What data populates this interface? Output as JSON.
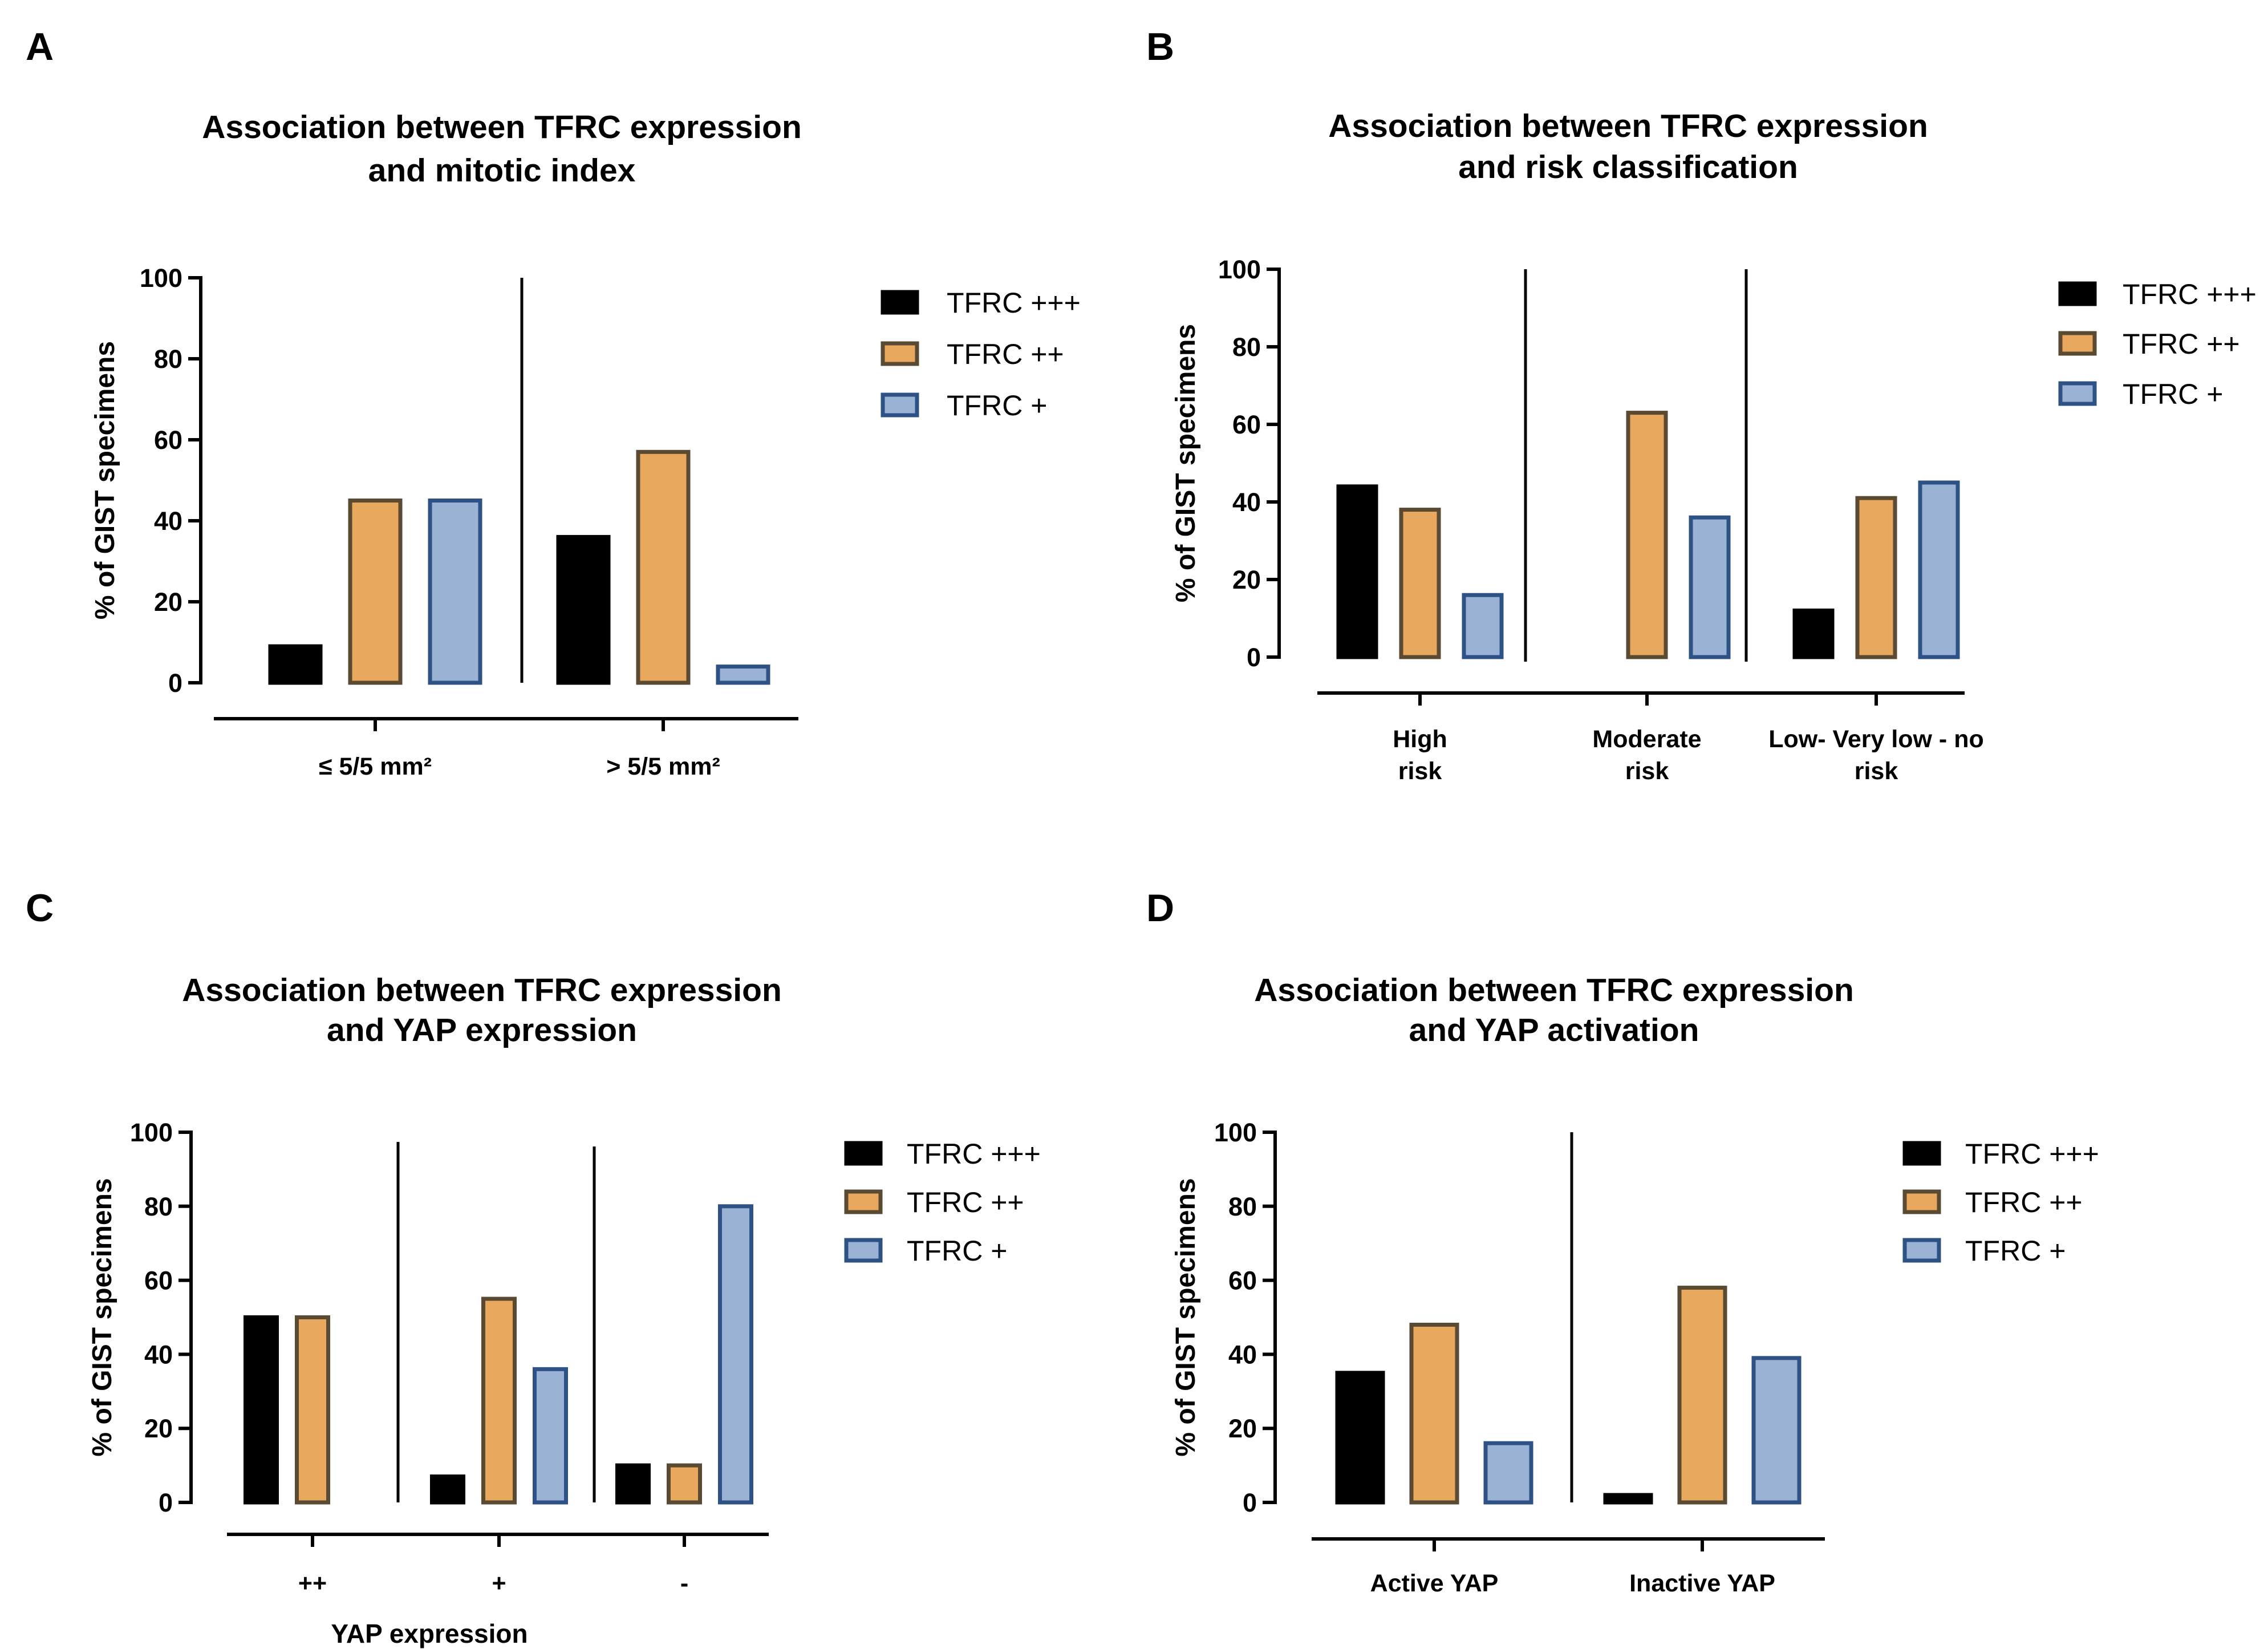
{
  "series_styles": [
    {
      "name": "TFRC +++",
      "fill": "#000000",
      "stroke": "#000000"
    },
    {
      "name": "TFRC ++",
      "fill": "#e8a95f",
      "stroke": "#5a4a32"
    },
    {
      "name": "TFRC +",
      "fill": "#9ab3d5",
      "stroke": "#2e5286"
    }
  ],
  "chart_data": [
    {
      "panel": "A",
      "type": "bar",
      "title": [
        "Association between TFRC expression",
        "and mitotic index"
      ],
      "ylabel": "% of GIST specimens",
      "xlabel": "",
      "ylim": [
        0,
        100
      ],
      "yticks": [
        0,
        20,
        40,
        60,
        80,
        100
      ],
      "categories": [
        [
          "≤ 5/5 mm²"
        ],
        [
          "> 5/5 mm²"
        ]
      ],
      "series": [
        {
          "name": "TFRC +++",
          "values": [
            9,
            36
          ]
        },
        {
          "name": "TFRC ++",
          "values": [
            45,
            57
          ]
        },
        {
          "name": "TFRC +",
          "values": [
            45,
            4
          ]
        }
      ],
      "legend": "right"
    },
    {
      "panel": "B",
      "type": "bar",
      "title": [
        "Association between TFRC expression",
        "and risk classification"
      ],
      "ylabel": "% of GIST specimens",
      "xlabel": "",
      "ylim": [
        0,
        100
      ],
      "yticks": [
        0,
        20,
        40,
        60,
        80,
        100
      ],
      "categories": [
        [
          "High",
          "risk"
        ],
        [
          "Moderate",
          "risk"
        ],
        [
          "Low- Very low - no",
          "risk"
        ]
      ],
      "series": [
        {
          "name": "TFRC +++",
          "values": [
            44,
            0,
            12
          ]
        },
        {
          "name": "TFRC ++",
          "values": [
            38,
            63,
            41
          ]
        },
        {
          "name": "TFRC +",
          "values": [
            16,
            36,
            45
          ]
        }
      ],
      "legend": "right"
    },
    {
      "panel": "C",
      "type": "bar",
      "title": [
        "Association between TFRC expression",
        "and YAP expression"
      ],
      "ylabel": "% of GIST specimens",
      "xlabel": "YAP expression",
      "ylim": [
        0,
        100
      ],
      "yticks": [
        0,
        20,
        40,
        60,
        80,
        100
      ],
      "categories": [
        [
          "++"
        ],
        [
          "+"
        ],
        [
          "-"
        ]
      ],
      "series": [
        {
          "name": "TFRC +++",
          "values": [
            50,
            7,
            10
          ]
        },
        {
          "name": "TFRC ++",
          "values": [
            50,
            55,
            10
          ]
        },
        {
          "name": "TFRC +",
          "values": [
            0,
            36,
            80
          ]
        }
      ],
      "legend": "right"
    },
    {
      "panel": "D",
      "type": "bar",
      "title": [
        "Association between TFRC expression",
        "and YAP activation"
      ],
      "ylabel": "% of GIST specimens",
      "xlabel": "",
      "ylim": [
        0,
        100
      ],
      "yticks": [
        0,
        20,
        40,
        60,
        80,
        100
      ],
      "categories": [
        [
          "Active YAP"
        ],
        [
          "Inactive YAP"
        ]
      ],
      "series": [
        {
          "name": "TFRC +++",
          "values": [
            35,
            2
          ]
        },
        {
          "name": "TFRC ++",
          "values": [
            48,
            58
          ]
        },
        {
          "name": "TFRC +",
          "values": [
            16,
            39
          ]
        }
      ],
      "legend": "right"
    }
  ]
}
